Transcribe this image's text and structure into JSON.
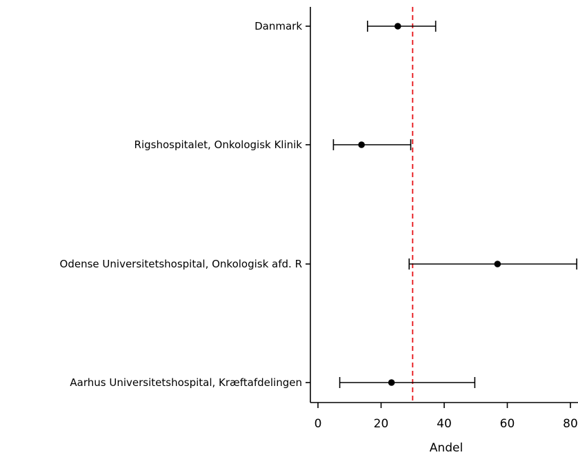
{
  "chart_data": {
    "type": "forest",
    "xlabel": "Andel",
    "xlim": [
      0,
      82
    ],
    "xticks": [
      0,
      20,
      40,
      60,
      80
    ],
    "reference_line": {
      "x": 30,
      "style": "dashed",
      "color": "#e8262a"
    },
    "categories": [
      "Danmark",
      "Rigshospitalet, Onkologisk Klinik",
      "Odense Universitetshospital, Onkologisk afd. R",
      "Aarhus Universitetshospital, Kræftafdelingen"
    ],
    "points": [
      {
        "category": "Danmark",
        "estimate": 25.3,
        "lower": 15.7,
        "upper": 37.3
      },
      {
        "category": "Rigshospitalet, Onkologisk Klinik",
        "estimate": 13.8,
        "lower": 4.9,
        "upper": 29.4
      },
      {
        "category": "Odense Universitetshospital, Onkologisk afd. R",
        "estimate": 56.9,
        "lower": 28.9,
        "upper": 82.0
      },
      {
        "category": "Aarhus Universitetshospital, Kræftafdelingen",
        "estimate": 23.3,
        "lower": 6.9,
        "upper": 49.7
      }
    ],
    "colors": {
      "points": "#000000",
      "axes": "#000000",
      "reference": "#e8262a"
    }
  }
}
